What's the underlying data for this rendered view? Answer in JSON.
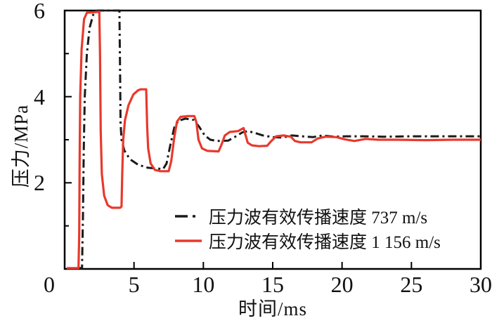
{
  "figure": {
    "background": "#ffffff",
    "axis_color": "#000000",
    "text_color": "#111111"
  },
  "chart_data": {
    "type": "line",
    "title": "",
    "xlabel": "时间/ms",
    "ylabel": "压力/MPa",
    "xlim": [
      0,
      30
    ],
    "ylim": [
      0,
      6
    ],
    "x_major_ticks": [
      0,
      5,
      10,
      15,
      20,
      25,
      30
    ],
    "y_major_ticks": [
      0,
      2,
      4,
      6
    ],
    "y_minor_ticks": [
      1,
      3,
      5
    ],
    "grid": false,
    "legend_position": "inside-bottom-right",
    "series": [
      {
        "label": "压力波有效传播速度 737 m/s",
        "color": "#1a1a1a",
        "style": "dash-dot",
        "points": [
          [
            0.9,
            0.02
          ],
          [
            1.25,
            0.02
          ],
          [
            1.32,
            1.2
          ],
          [
            1.38,
            2.8
          ],
          [
            1.45,
            4.0
          ],
          [
            1.6,
            5.0
          ],
          [
            1.8,
            5.6
          ],
          [
            2.1,
            5.95
          ],
          [
            2.4,
            6.0
          ],
          [
            3.95,
            6.0
          ],
          [
            4.0,
            4.5
          ],
          [
            4.03,
            3.4
          ],
          [
            4.1,
            3.0
          ],
          [
            4.3,
            2.75
          ],
          [
            4.7,
            2.55
          ],
          [
            5.3,
            2.42
          ],
          [
            6.0,
            2.35
          ],
          [
            7.1,
            2.32
          ],
          [
            7.35,
            2.45
          ],
          [
            7.6,
            2.85
          ],
          [
            7.9,
            3.28
          ],
          [
            8.2,
            3.44
          ],
          [
            8.7,
            3.49
          ],
          [
            9.3,
            3.46
          ],
          [
            9.7,
            3.3
          ],
          [
            10.1,
            3.1
          ],
          [
            10.5,
            3.0
          ],
          [
            11.0,
            2.97
          ],
          [
            11.8,
            2.98
          ],
          [
            12.3,
            3.07
          ],
          [
            12.8,
            3.17
          ],
          [
            13.2,
            3.2
          ],
          [
            13.7,
            3.16
          ],
          [
            14.3,
            3.1
          ],
          [
            15.0,
            3.06
          ],
          [
            15.7,
            3.05
          ],
          [
            16.4,
            3.1
          ],
          [
            17.1,
            3.08
          ],
          [
            17.9,
            3.06
          ],
          [
            18.6,
            3.1
          ],
          [
            19.4,
            3.07
          ],
          [
            20.3,
            3.08
          ],
          [
            21.5,
            3.08
          ],
          [
            23.0,
            3.07
          ],
          [
            25.0,
            3.08
          ],
          [
            27.0,
            3.08
          ],
          [
            30.0,
            3.08
          ]
        ]
      },
      {
        "label": "压力波有效传播速度 1 156 m/s",
        "color": "#e8392c",
        "style": "solid",
        "points": [
          [
            0.15,
            0.02
          ],
          [
            1.0,
            0.02
          ],
          [
            1.05,
            0.8
          ],
          [
            1.08,
            2.5
          ],
          [
            1.12,
            4.0
          ],
          [
            1.22,
            5.1
          ],
          [
            1.4,
            5.8
          ],
          [
            1.6,
            5.95
          ],
          [
            2.5,
            5.97
          ],
          [
            2.55,
            5.0
          ],
          [
            2.6,
            3.2
          ],
          [
            2.68,
            2.2
          ],
          [
            2.85,
            1.7
          ],
          [
            3.1,
            1.48
          ],
          [
            3.4,
            1.42
          ],
          [
            4.0,
            1.42
          ],
          [
            4.1,
            1.45
          ],
          [
            4.15,
            2.2
          ],
          [
            4.22,
            3.0
          ],
          [
            4.35,
            3.45
          ],
          [
            4.6,
            3.8
          ],
          [
            4.95,
            4.05
          ],
          [
            5.3,
            4.15
          ],
          [
            5.5,
            4.17
          ],
          [
            5.88,
            4.17
          ],
          [
            5.95,
            3.3
          ],
          [
            6.02,
            2.8
          ],
          [
            6.2,
            2.45
          ],
          [
            6.5,
            2.3
          ],
          [
            6.9,
            2.27
          ],
          [
            7.5,
            2.27
          ],
          [
            7.68,
            2.5
          ],
          [
            7.9,
            3.05
          ],
          [
            8.1,
            3.42
          ],
          [
            8.35,
            3.53
          ],
          [
            8.9,
            3.55
          ],
          [
            9.35,
            3.55
          ],
          [
            9.5,
            3.4
          ],
          [
            9.65,
            3.0
          ],
          [
            9.9,
            2.8
          ],
          [
            10.3,
            2.74
          ],
          [
            11.1,
            2.73
          ],
          [
            11.3,
            2.88
          ],
          [
            11.55,
            3.1
          ],
          [
            11.9,
            3.18
          ],
          [
            12.5,
            3.2
          ],
          [
            12.9,
            3.27
          ],
          [
            13.05,
            3.1
          ],
          [
            13.2,
            2.93
          ],
          [
            13.5,
            2.87
          ],
          [
            14.0,
            2.85
          ],
          [
            14.6,
            2.86
          ],
          [
            14.9,
            2.97
          ],
          [
            15.25,
            3.08
          ],
          [
            15.8,
            3.1
          ],
          [
            16.3,
            3.07
          ],
          [
            16.6,
            2.97
          ],
          [
            17.0,
            2.94
          ],
          [
            17.8,
            2.94
          ],
          [
            18.25,
            3.03
          ],
          [
            18.8,
            3.07
          ],
          [
            19.6,
            3.06
          ],
          [
            20.2,
            3.01
          ],
          [
            20.9,
            2.97
          ],
          [
            21.7,
            3.02
          ],
          [
            22.6,
            3.0
          ],
          [
            24.0,
            3.0
          ],
          [
            26.0,
            2.99
          ],
          [
            28.0,
            3.0
          ],
          [
            30.0,
            3.0
          ]
        ]
      }
    ]
  }
}
